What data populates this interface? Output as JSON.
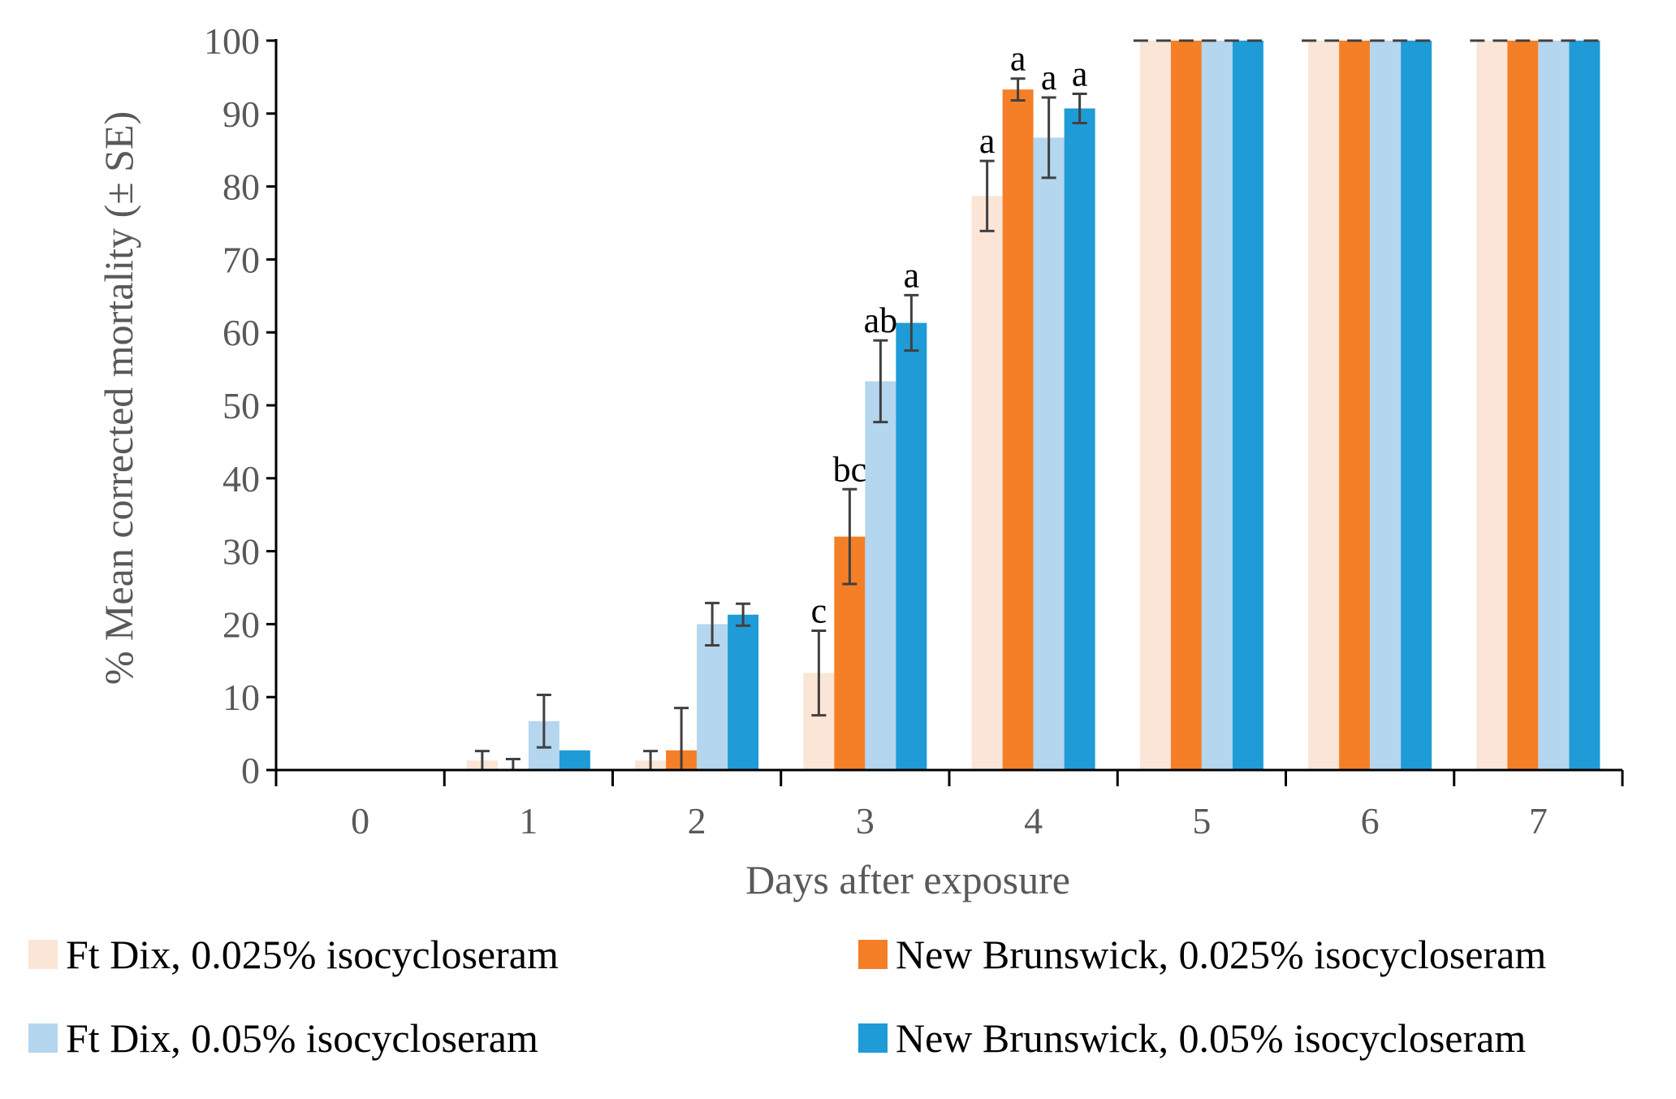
{
  "chart_data": {
    "type": "bar",
    "title": "",
    "xlabel": "Days after exposure",
    "ylabel": "% Mean corrected mortality (± SE)",
    "ylim": [
      0,
      100
    ],
    "yticks": [
      0,
      10,
      20,
      30,
      40,
      50,
      60,
      70,
      80,
      90,
      100
    ],
    "categories": [
      "0",
      "1",
      "2",
      "3",
      "4",
      "5",
      "6",
      "7"
    ],
    "legend_placement": "bottom",
    "series": [
      {
        "name": "Ft Dix, 0.025% isocycloseram",
        "color": "#fbe5d6",
        "values": [
          0,
          1.3,
          1.3,
          13.3,
          78.7,
          100,
          100,
          100
        ],
        "errors": [
          0,
          1.3,
          1.3,
          5.8,
          4.8,
          0,
          0,
          0
        ],
        "labels": [
          "",
          "",
          "",
          "c",
          "a",
          "",
          "",
          ""
        ]
      },
      {
        "name": "New Brunswick, 0.025% isocycloseram",
        "color": "#f57f27",
        "values": [
          0,
          0,
          2.7,
          32.0,
          93.3,
          100,
          100,
          100
        ],
        "errors": [
          0,
          1.5,
          5.8,
          6.5,
          1.5,
          0,
          0,
          0
        ],
        "labels": [
          "",
          "",
          "",
          "bc",
          "a",
          "",
          "",
          ""
        ]
      },
      {
        "name": "Ft Dix, 0.05% isocycloseram",
        "color": "#b4d6ee",
        "values": [
          0,
          6.7,
          20.0,
          53.3,
          86.7,
          100,
          100,
          100
        ],
        "errors": [
          0,
          3.6,
          2.9,
          5.6,
          5.5,
          0,
          0,
          0
        ],
        "labels": [
          "",
          "",
          "",
          "ab",
          "a",
          "",
          "",
          ""
        ]
      },
      {
        "name": "New Brunswick, 0.05% isocycloseram",
        "color": "#1f9bd7",
        "values": [
          0,
          2.7,
          21.3,
          61.3,
          90.7,
          100,
          100,
          100
        ],
        "errors": [
          0,
          0,
          1.5,
          3.8,
          2.0,
          0,
          0,
          0
        ],
        "labels": [
          "",
          "",
          "",
          "a",
          "a",
          "",
          "",
          ""
        ]
      }
    ]
  }
}
